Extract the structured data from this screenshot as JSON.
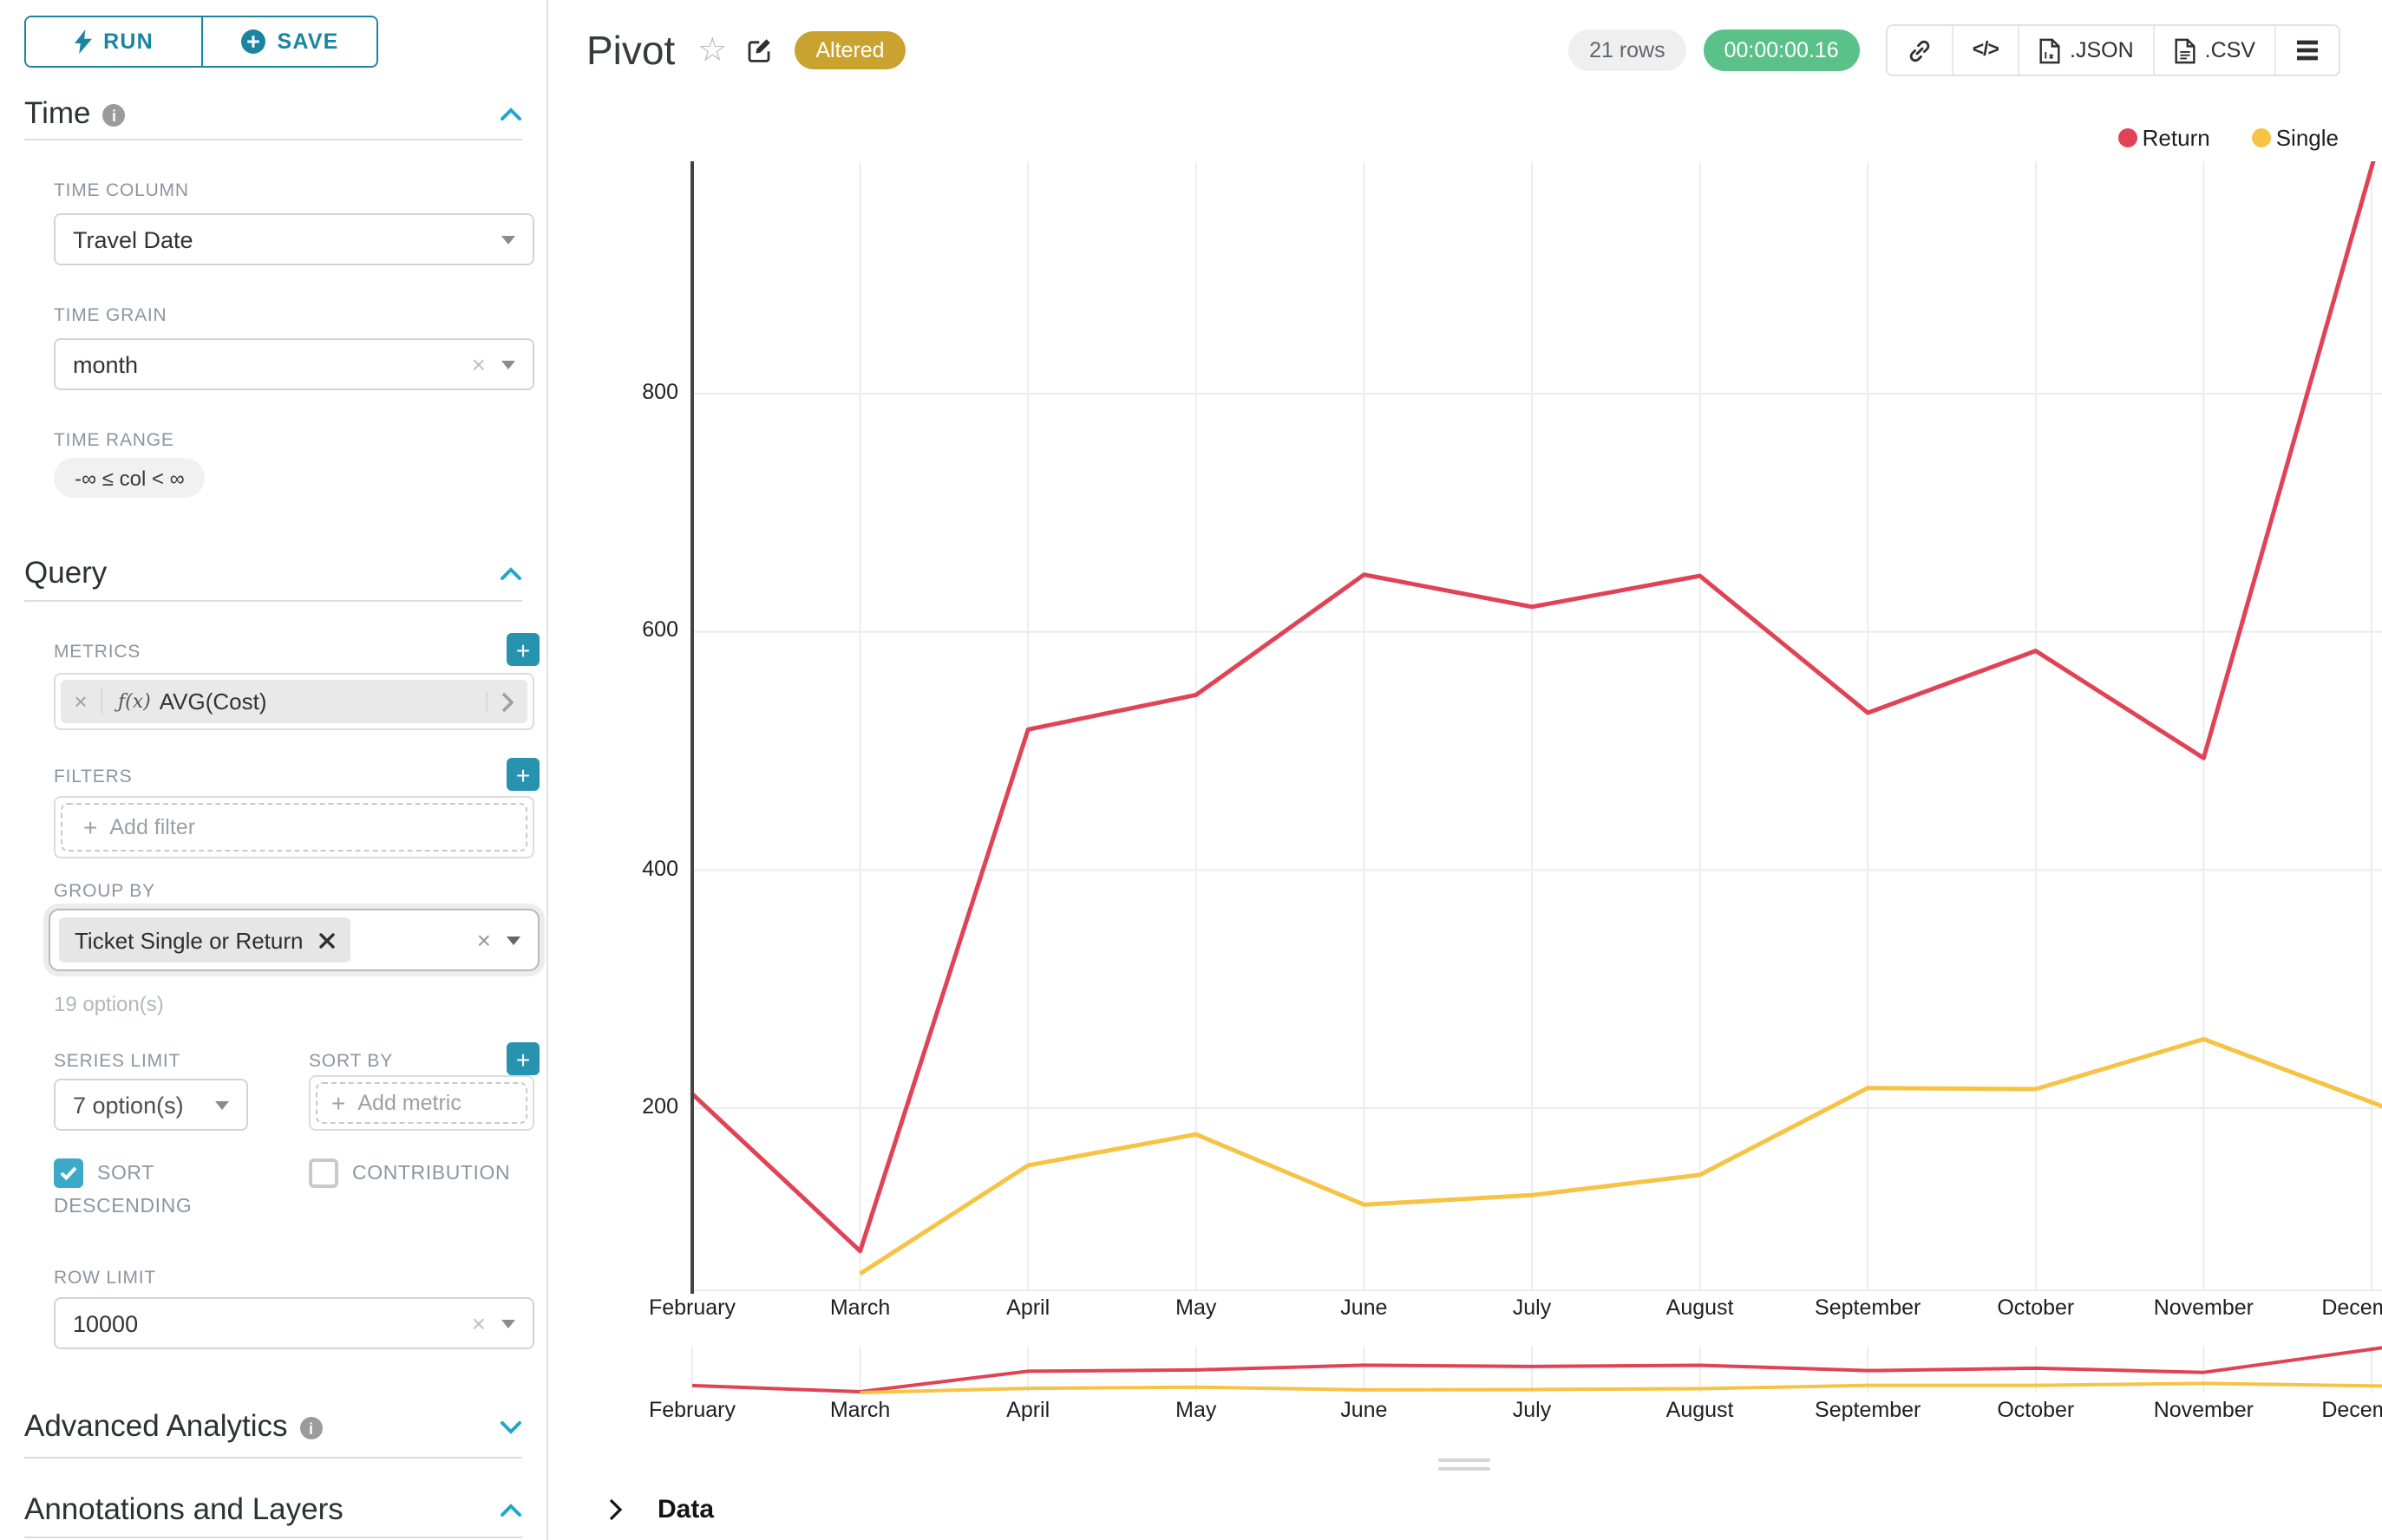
{
  "sidebar": {
    "run_label": "RUN",
    "save_label": "SAVE",
    "time": {
      "title": "Time",
      "time_column_label": "TIME COLUMN",
      "time_column_value": "Travel Date",
      "time_grain_label": "TIME GRAIN",
      "time_grain_value": "month",
      "time_range_label": "TIME RANGE",
      "time_range_value": "-∞ ≤ col < ∞"
    },
    "query": {
      "title": "Query",
      "metrics_label": "METRICS",
      "metric_fx": "ƒ(x)",
      "metric_value": "AVG(Cost)",
      "filters_label": "FILTERS",
      "add_filter_label": "Add filter",
      "group_by_label": "GROUP BY",
      "group_by_chip": "Ticket Single or Return",
      "options_hint": "19 option(s)",
      "series_limit_label": "SERIES LIMIT",
      "series_limit_value": "7 option(s)",
      "sort_by_label": "SORT BY",
      "add_metric_label": "Add metric",
      "sort_descending_line1": "SORT",
      "sort_descending_line2": "DESCENDING",
      "contribution_label": "CONTRIBUTION",
      "row_limit_label": "ROW LIMIT",
      "row_limit_value": "10000"
    },
    "advanced_analytics_title": "Advanced Analytics",
    "annotations_title": "Annotations and Layers"
  },
  "header": {
    "title": "Pivot",
    "altered_badge": "Altered",
    "rows_badge": "21 rows",
    "timer": "00:00:00.16",
    "code_label": "</>",
    "json_label": ".JSON",
    "csv_label": ".CSV"
  },
  "footer": {
    "data_label": "Data"
  },
  "icons": {
    "run": "bolt-icon",
    "save": "plus-circle-icon",
    "info": "info-circle-icon",
    "collapse": "chevron-up-icon",
    "expand": "chevron-down-icon",
    "select_caret": "caret-down-icon",
    "clear": "×",
    "plus": "+",
    "star": "☆",
    "favorite": "star-outline-icon",
    "edit": "edit-pencil-icon",
    "link": "link-icon",
    "embed": "code-icon",
    "json_file": "file-json-icon",
    "csv_file": "file-csv-icon",
    "menu": "menu-bars-icon",
    "drag": "drag-handle-icon",
    "data_expand": "chevron-right-icon"
  },
  "chart_data": {
    "type": "line",
    "title": "Pivot",
    "categories": [
      "February",
      "March",
      "April",
      "May",
      "June",
      "July",
      "August",
      "September",
      "October",
      "November",
      "December"
    ],
    "series": [
      {
        "name": "Return",
        "color": "#E04355",
        "values": [
          212,
          80,
          518,
          547,
          648,
          621,
          647,
          532,
          584,
          494,
          990
        ]
      },
      {
        "name": "Single",
        "color": "#F6C344",
        "values": [
          null,
          61,
          152,
          178,
          119,
          127,
          144,
          217,
          216,
          258,
          205
        ]
      }
    ],
    "yticks": [
      200,
      400,
      600,
      800
    ],
    "ylim": [
      40,
      1000
    ],
    "xlabel": "",
    "ylabel": "",
    "grid": true,
    "legend_position": "top-right",
    "has_datazoom_preview": true
  }
}
